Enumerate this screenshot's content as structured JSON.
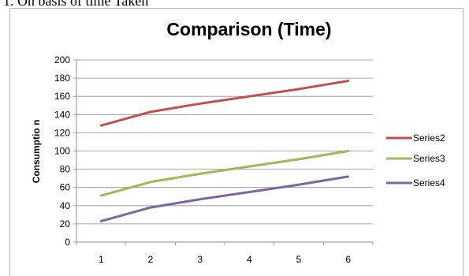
{
  "caption": "1.   On basis of time Taken",
  "chart_data": {
    "type": "line",
    "title": "Comparison (Time)",
    "xlabel": "",
    "ylabel": "Consumptio n",
    "categories": [
      "1",
      "2",
      "3",
      "4",
      "5",
      "6"
    ],
    "ylim": [
      0,
      200
    ],
    "yticks": [
      0,
      20,
      40,
      60,
      80,
      100,
      120,
      140,
      160,
      180,
      200
    ],
    "grid": true,
    "legend_position": "right",
    "series": [
      {
        "name": "Series2",
        "color": "#c0504d",
        "values": [
          128,
          143,
          152,
          160,
          168,
          177
        ]
      },
      {
        "name": "Series3",
        "color": "#9bbb59",
        "values": [
          51,
          66,
          75,
          83,
          91,
          100
        ]
      },
      {
        "name": "Series4",
        "color": "#8064a2",
        "values": [
          23,
          38,
          47,
          55,
          63,
          72
        ]
      }
    ]
  }
}
